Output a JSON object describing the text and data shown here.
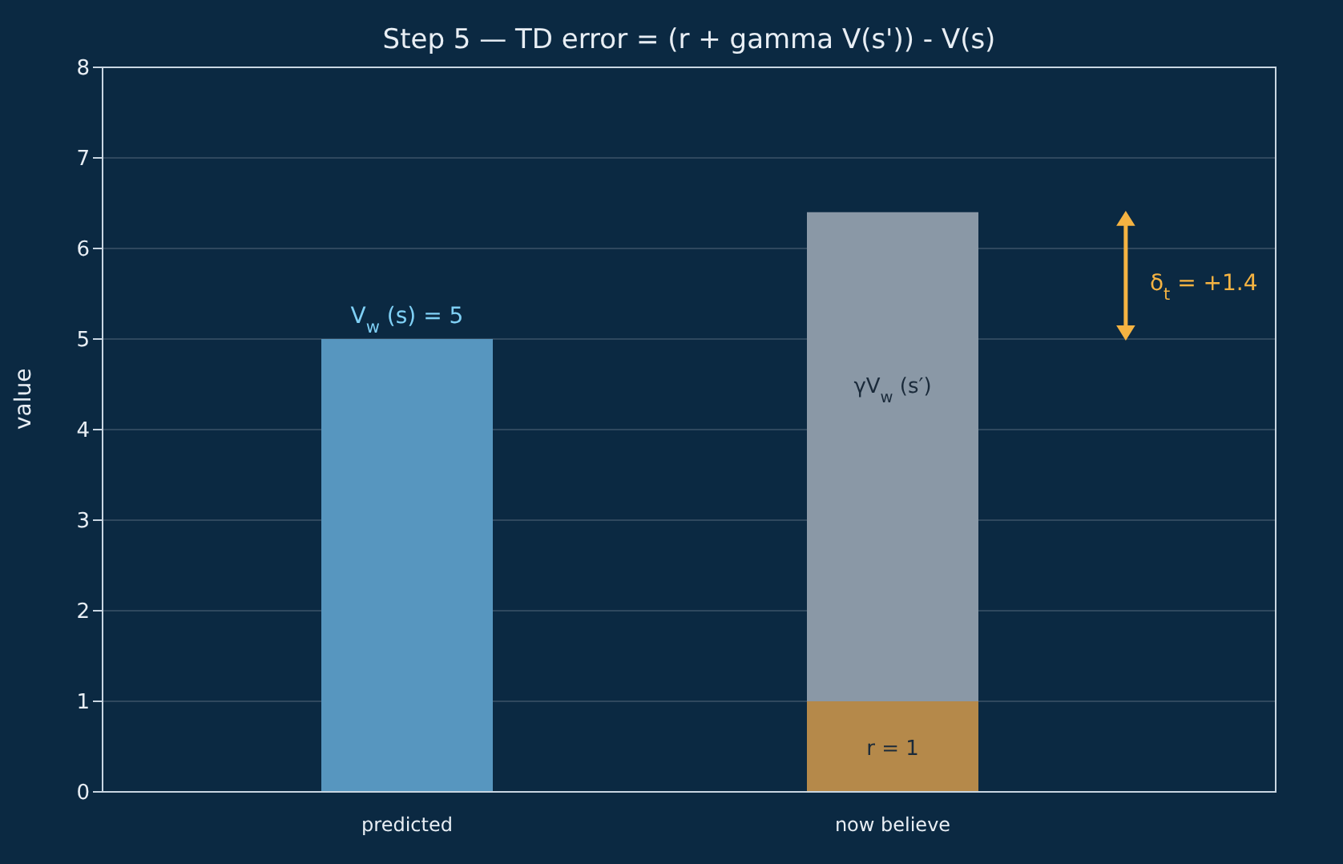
{
  "chart_data": {
    "type": "bar",
    "title": "Step 5 — TD error = (r + gamma V(s')) - V(s)",
    "ylabel": "value",
    "categories": [
      "predicted",
      "now believe"
    ],
    "stacked": true,
    "series": [
      {
        "colors": [
          "#5796bf",
          "#b5894a"
        ],
        "values": [
          5,
          1
        ]
      },
      {
        "color": "#8a98a6",
        "values": [
          null,
          5.4
        ]
      }
    ],
    "ylim": [
      0,
      8
    ],
    "yticks": [
      0,
      1,
      2,
      3,
      4,
      5,
      6,
      7,
      8
    ],
    "grid": "y",
    "annotations": [
      {
        "text": "V$_{w}$(s) = 5",
        "x": "predicted",
        "y": 5
      },
      "γV$_{w}$(s′)",
      "r = 1",
      "δ$_{t}$ = +1.4"
    ]
  }
}
